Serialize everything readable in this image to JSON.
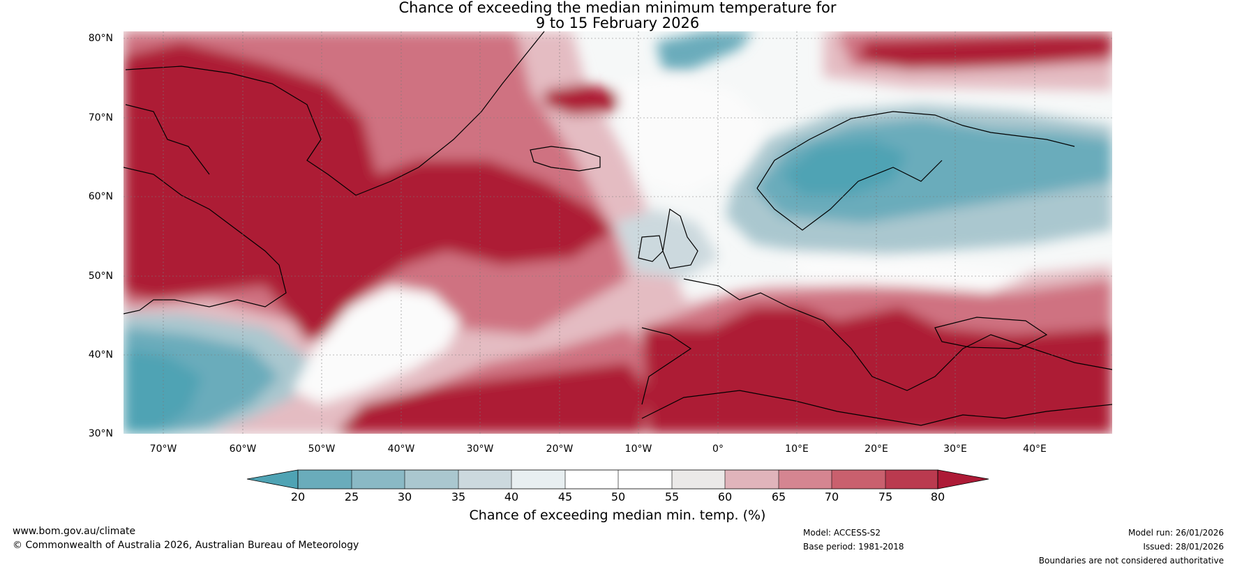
{
  "title": {
    "line1": "Chance of exceeding the median minimum temperature for",
    "line2": "9 to 15 February 2026"
  },
  "latitude_labels": [
    "80°N",
    "70°N",
    "60°N",
    "50°N",
    "40°N",
    "30°N"
  ],
  "longitude_labels": [
    "70°W",
    "60°W",
    "50°W",
    "40°W",
    "30°W",
    "20°W",
    "10°W",
    "0°",
    "10°E",
    "20°E",
    "30°E",
    "40°E"
  ],
  "colorbar": {
    "ticks": [
      "20",
      "25",
      "30",
      "35",
      "40",
      "45",
      "50",
      "55",
      "60",
      "65",
      "70",
      "75",
      "80"
    ],
    "colors": [
      "#4fa3b4",
      "#6aacbb",
      "#8ab9c5",
      "#aac7cf",
      "#ccd9de",
      "#e8eff1",
      "#ffffff",
      "#ffffff",
      "#ebe9e8",
      "#e0b4bb",
      "#d58591",
      "#c9606e",
      "#ba3a4f",
      "#ad1a36"
    ],
    "label": "Chance of exceeding median min. temp. (%)"
  },
  "map_regions": {
    "warm_color": "#ad1a36",
    "cool_color": "#4fa3b4",
    "neutral_color": "#ffffff"
  },
  "footer": {
    "website": "www.bom.gov.au/climate",
    "copyright": "© Commonwealth of Australia 2026, Australian Bureau of Meteorology",
    "model": "Model: ACCESS-S2",
    "base_period": "Base period: 1981-2018",
    "model_run": "Model run: 26/01/2026",
    "issued": "Issued: 28/01/2026",
    "disclaimer": "Boundaries are not considered authoritative"
  }
}
